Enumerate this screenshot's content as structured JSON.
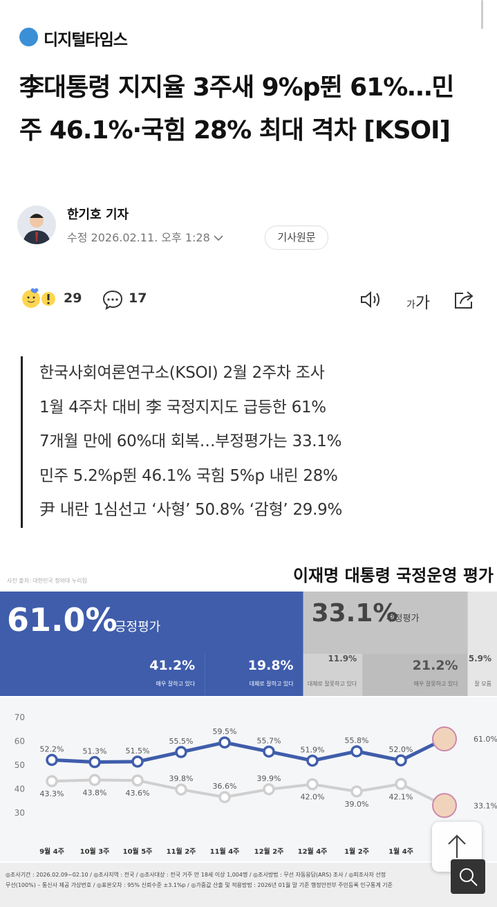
{
  "header": {
    "logo": "디지털타임스"
  },
  "article": {
    "title": "李대통령 지지율 3주새 9%p뛴 61%…민주 46.1%·국힘 28% 최대 격차 [KSOI]",
    "author": "한기호 기자",
    "timestamp": "수정 2026.02.11. 오후 1:28",
    "original_button": "기사원문",
    "reactions": {
      "likes": 29,
      "comments": 17
    },
    "font_button": [
      "가",
      "가"
    ],
    "summary": [
      "한국사회여론연구소(KSOI) 2월 2주차 조사",
      "1월 4주차 대비 李 국정지지도 급등한 61%",
      "7개월 만에 60%대 회복…부정평가는 33.1%",
      "민주 5.2%p뛴 46.1% 국힘 5%p 내린 28%",
      "尹 내란 1심선고 ‘사형’ 50.8% ‘감형’ 29.9%"
    ]
  },
  "infographic": {
    "source": "사진 출처: 대한민국 청와대 누리집",
    "title": "이재명 대통령 국정운영 평가",
    "summary_bar": [
      {
        "name": "긍정평가",
        "value": 61.0,
        "value_label": "61.0%",
        "color": "#3f5dab"
      },
      {
        "name": "부정평가",
        "value": 33.1,
        "value_label": "33.1%",
        "color": "#c4c4c4"
      }
    ],
    "breakdown": [
      {
        "name": "매우 잘하고 있다",
        "value": 41.2,
        "value_label": "41.2%",
        "color": "#3f5dab"
      },
      {
        "name": "대체로 잘하고 있다",
        "value": 19.8,
        "value_label": "19.8%",
        "color": "#3f5dab"
      },
      {
        "name": "대체로 잘못하고 있다",
        "value": 11.9,
        "value_label": "11.9%",
        "color": "#d2d2d2"
      },
      {
        "name": "매우 잘못하고 있다",
        "value": 21.2,
        "value_label": "21.2%",
        "color": "#bdbdbd"
      },
      {
        "name": "잘 모름",
        "value": 5.9,
        "value_label": "5.9%",
        "color": "#e6e6e6"
      }
    ],
    "chart_data": {
      "type": "line",
      "categories": [
        "9월 4주",
        "10월 3주",
        "10월 5주",
        "11월 2주",
        "11월 4주",
        "12월 2주",
        "12월 4주",
        "1월 2주",
        "1월 4주",
        null
      ],
      "series": [
        {
          "color": "#3f5dab",
          "values": [
            52.2,
            51.3,
            51.5,
            55.5,
            59.5,
            55.7,
            51.9,
            55.8,
            52.0,
            61.0
          ],
          "value_labels": [
            "52.2%",
            "51.3%",
            "51.5%",
            "55.5%",
            "59.5%",
            "55.7%",
            "51.9%",
            "55.8%",
            "52.0%",
            "61.0%"
          ]
        },
        {
          "color": "#cfcfcf",
          "values": [
            43.3,
            43.8,
            43.6,
            39.8,
            36.6,
            39.9,
            42.0,
            39.0,
            42.1,
            33.1
          ],
          "value_labels": [
            "43.3%",
            "43.8%",
            "43.6%",
            "39.8%",
            "36.6%",
            "39.9%",
            "42.0%",
            "39.0%",
            "42.1%",
            "33.1%"
          ]
        }
      ],
      "ylim": [
        30,
        70
      ],
      "yticks": [
        30,
        40,
        50,
        60,
        70
      ]
    },
    "footnote": [
      "◎조사기간 : 2026.02.09~02.10 / ◎조사지역 : 전국 / ◎조사대상 : 전국 거주 만 18세 이상 1,004명 / ◎조사방법 : 무선 자동응답(ARS) 조사 / ◎피조사자 선정",
      "무선(100%) – 통신사 제공 가상번호 / ◎표본오차 : 95% 신뢰수준 ±3.1%p / ◎가중값 산출 및 적용방법 : 2026년 01월 말 기준 행정안전부 주민등록 인구통계 기준"
    ]
  }
}
